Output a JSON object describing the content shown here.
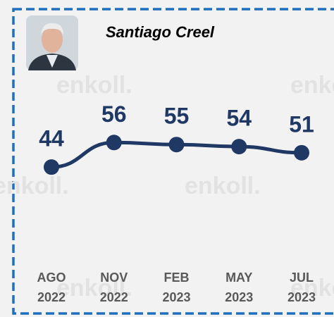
{
  "chart_data": {
    "type": "line",
    "title": "Santiago Creel",
    "watermark": "enkoll.",
    "categories": [
      "AGO 2022",
      "NOV 2022",
      "FEB 2023",
      "MAY 2023",
      "JUL 2023"
    ],
    "values": [
      44,
      56,
      55,
      54,
      51
    ],
    "color": "#1f3864",
    "ylim": [
      0,
      74
    ]
  }
}
